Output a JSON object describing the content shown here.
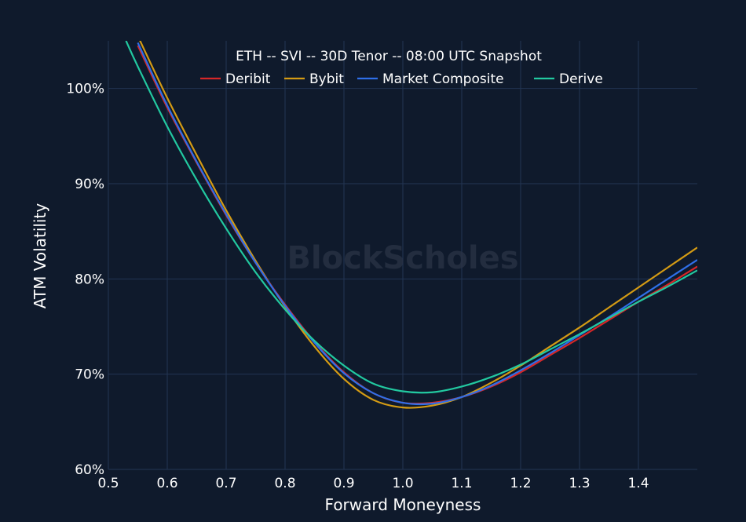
{
  "chart_data": {
    "type": "line",
    "title": "ETH -- SVI -- 30D Tenor -- 08:00 UTC Snapshot",
    "xlabel": "Forward Moneyness",
    "ylabel": "ATM Volatility",
    "xlim": [
      0.5,
      1.5
    ],
    "ylim": [
      60,
      105
    ],
    "x_ticks": [
      "0.5",
      "0.6",
      "0.7",
      "0.8",
      "0.9",
      "1.0",
      "1.1",
      "1.2",
      "1.3",
      "1.4"
    ],
    "y_ticks": [
      "60%",
      "70%",
      "80%",
      "90%",
      "100%"
    ],
    "grid": true,
    "legend_position": "top",
    "watermark": "BlockScholes",
    "series": [
      {
        "name": "Deribit",
        "color": "#d62728",
        "x": [
          0.55,
          0.6,
          0.65,
          0.7,
          0.75,
          0.8,
          0.85,
          0.9,
          0.95,
          1.0,
          1.05,
          1.1,
          1.15,
          1.2,
          1.25,
          1.3,
          1.35,
          1.4,
          1.45,
          1.5
        ],
        "y": [
          104.5,
          98.0,
          92.2,
          86.7,
          81.7,
          77.3,
          73.4,
          70.2,
          68.0,
          67.0,
          67.0,
          67.6,
          68.7,
          70.2,
          72.0,
          73.8,
          75.7,
          77.6,
          79.4,
          81.3
        ]
      },
      {
        "name": "Bybit",
        "color": "#d49b14",
        "x": [
          0.55,
          0.6,
          0.65,
          0.7,
          0.75,
          0.8,
          0.85,
          0.9,
          0.95,
          1.0,
          1.05,
          1.1,
          1.15,
          1.2,
          1.25,
          1.3,
          1.35,
          1.4,
          1.45,
          1.5
        ],
        "y": [
          105.5,
          99.0,
          93.0,
          87.2,
          81.9,
          77.1,
          72.9,
          69.5,
          67.3,
          66.5,
          66.7,
          67.6,
          69.1,
          70.9,
          72.9,
          74.9,
          77.0,
          79.1,
          81.2,
          83.3
        ]
      },
      {
        "name": "Market Composite",
        "color": "#2f6fe8",
        "x": [
          0.55,
          0.6,
          0.65,
          0.7,
          0.75,
          0.8,
          0.85,
          0.9,
          0.95,
          1.0,
          1.05,
          1.1,
          1.15,
          1.2,
          1.25,
          1.3,
          1.35,
          1.4,
          1.45,
          1.5
        ],
        "y": [
          104.8,
          98.2,
          92.3,
          86.8,
          81.7,
          77.2,
          73.3,
          70.1,
          68.0,
          67.0,
          66.9,
          67.6,
          68.8,
          70.4,
          72.2,
          74.1,
          76.0,
          78.0,
          80.0,
          82.0
        ]
      },
      {
        "name": "Derive",
        "color": "#22c9a0",
        "x": [
          0.53,
          0.55,
          0.6,
          0.65,
          0.7,
          0.75,
          0.8,
          0.85,
          0.9,
          0.95,
          1.0,
          1.05,
          1.1,
          1.15,
          1.2,
          1.25,
          1.3,
          1.35,
          1.4,
          1.45,
          1.5
        ],
        "y": [
          105.0,
          102.3,
          96.0,
          90.4,
          85.3,
          80.7,
          76.8,
          73.5,
          70.9,
          69.0,
          68.2,
          68.1,
          68.7,
          69.7,
          71.0,
          72.6,
          74.2,
          75.9,
          77.6,
          79.2,
          80.9
        ]
      }
    ]
  }
}
